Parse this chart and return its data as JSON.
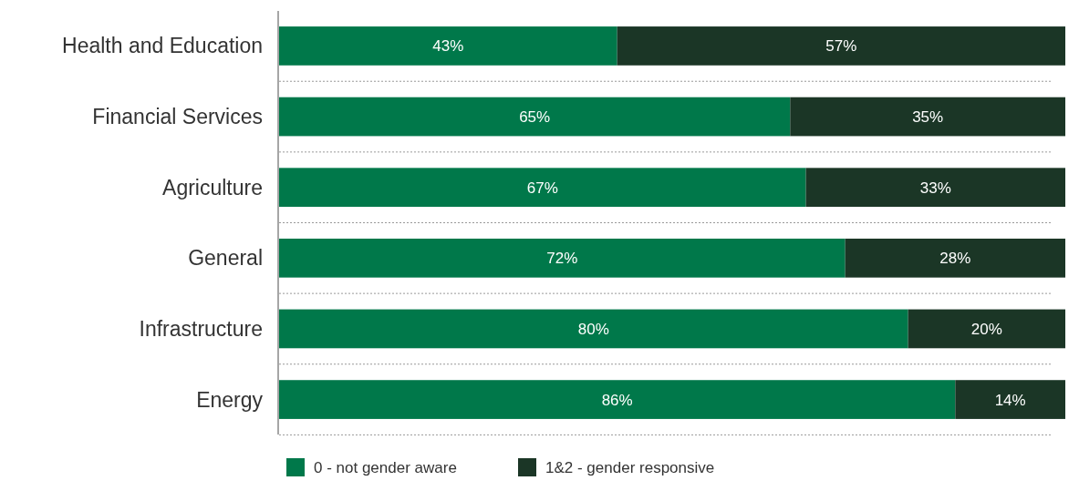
{
  "chart_data": {
    "type": "bar",
    "orientation": "horizontal",
    "stacked": true,
    "categories": [
      "Health and Education",
      "Financial Services",
      "Agriculture",
      "General",
      "Infrastructure",
      "Energy"
    ],
    "series": [
      {
        "name": "0 - not gender aware",
        "color": "#00784a",
        "values": [
          43,
          65,
          67,
          72,
          80,
          86
        ],
        "value_labels": [
          "43%",
          "65%",
          "67%",
          "72%",
          "80%",
          "86%"
        ]
      },
      {
        "name": "1&2 - gender responsive",
        "color": "#1b3626",
        "values": [
          57,
          35,
          33,
          28,
          20,
          14
        ],
        "value_labels": [
          "57%",
          "35%",
          "33%",
          "28%",
          "20%",
          "14%"
        ]
      }
    ],
    "grid": "y",
    "legend": "bottom",
    "tick_labels": "y"
  }
}
